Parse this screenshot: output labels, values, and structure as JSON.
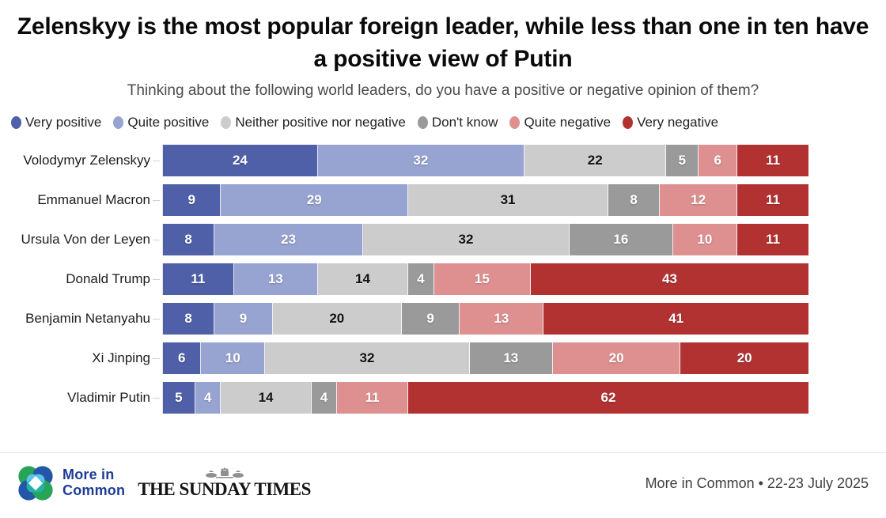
{
  "title": "Zelenskyy is the most popular foreign leader, while less than one in ten have a positive view of Putin",
  "subtitle": "Thinking about the following world leaders, do you have a positive or negative opinion of them?",
  "chart_data": {
    "type": "bar",
    "stacked": true,
    "orientation": "horizontal",
    "xlim": [
      0,
      100
    ],
    "unit": "percent",
    "grid": false,
    "legend_position": "top-left",
    "categories": [
      "Volodymyr Zelenskyy",
      "Emmanuel Macron",
      "Ursula Von der Leyen",
      "Donald Trump",
      "Benjamin Netanyahu",
      "Xi Jinping",
      "Vladimir Putin"
    ],
    "series": [
      {
        "name": "Very positive",
        "color": "#4f60a8",
        "label_color": "light",
        "values": [
          24,
          9,
          8,
          11,
          8,
          6,
          5
        ]
      },
      {
        "name": "Quite positive",
        "color": "#97a3d0",
        "label_color": "light",
        "values": [
          32,
          29,
          23,
          13,
          9,
          10,
          4
        ]
      },
      {
        "name": "Neither positive nor negative",
        "color": "#cccccc",
        "label_color": "dark",
        "values": [
          22,
          31,
          32,
          14,
          20,
          32,
          14
        ]
      },
      {
        "name": "Don't know",
        "color": "#9a9a9a",
        "label_color": "light",
        "values": [
          5,
          8,
          16,
          4,
          9,
          13,
          4
        ]
      },
      {
        "name": "Quite negative",
        "color": "#de9090",
        "label_color": "light",
        "values": [
          6,
          12,
          10,
          15,
          13,
          20,
          11
        ]
      },
      {
        "name": "Very negative",
        "color": "#b23232",
        "label_color": "light",
        "values": [
          11,
          11,
          11,
          43,
          41,
          20,
          62
        ]
      }
    ]
  },
  "footer": {
    "mic_logo_line1": "More in",
    "mic_logo_line2": "Common",
    "sunday_times_wordmark": "THE SUNDAY TIMES",
    "source": "More in Common • 22-23 July 2025"
  },
  "brand_colors": {
    "mic_navy": "#1e3c96",
    "mic_blue": "#2356a8",
    "mic_green": "#27a457",
    "mic_lightblue": "#5cc3ea",
    "mic_teal": "#23b3a4"
  }
}
